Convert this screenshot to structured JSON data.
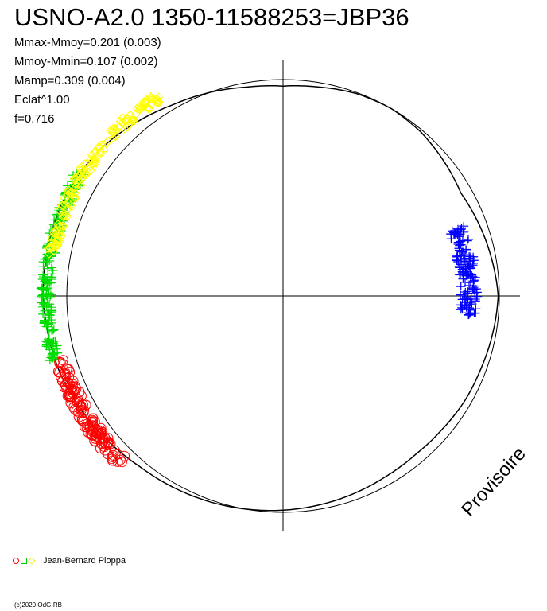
{
  "header": {
    "title": "USNO-A2.0 1350-11588253=JBP36",
    "stats": [
      "Mmax-Mmoy=0.201 (0.003)",
      "Mmoy-Mmin=0.107 (0.002)",
      "Mamp=0.309 (0.004)",
      "Eclat^1.00",
      "f=0.716"
    ]
  },
  "legend": {
    "observer": "Jean-Bernard Pioppa"
  },
  "watermark": "Provisoire",
  "footer": {
    "copyright": "(c)2020 OdG-RB"
  },
  "colors": {
    "red": "#ff0000",
    "green": "#00dd00",
    "yellow": "#ffff00",
    "blue": "#0000ff",
    "line": "#000000"
  },
  "chart_data": {
    "type": "scatter",
    "coordinate_system": "polar",
    "reference_circle_radius": 1.0,
    "model_curve": {
      "radius_at_angle_deg": [
        [
          0,
          0.995
        ],
        [
          10,
          0.98
        ],
        [
          20,
          0.965
        ],
        [
          30,
          0.95
        ],
        [
          40,
          0.97
        ],
        [
          50,
          0.99
        ],
        [
          60,
          1.0
        ],
        [
          70,
          0.995
        ],
        [
          80,
          0.98
        ],
        [
          90,
          0.97
        ],
        [
          100,
          0.98
        ],
        [
          110,
          1.0
        ],
        [
          120,
          1.02
        ],
        [
          130,
          1.05
        ],
        [
          140,
          1.08
        ],
        [
          150,
          1.1
        ],
        [
          160,
          1.11
        ],
        [
          170,
          1.11
        ],
        [
          180,
          1.11
        ],
        [
          190,
          1.1
        ],
        [
          200,
          1.09
        ],
        [
          210,
          1.07
        ],
        [
          220,
          1.05
        ],
        [
          230,
          1.03
        ],
        [
          240,
          1.02
        ],
        [
          250,
          1.01
        ],
        [
          260,
          1.0
        ],
        [
          270,
          0.99
        ],
        [
          280,
          0.98
        ],
        [
          290,
          0.97
        ],
        [
          300,
          0.96
        ],
        [
          310,
          0.955
        ],
        [
          320,
          0.96
        ],
        [
          330,
          0.97
        ],
        [
          340,
          0.975
        ],
        [
          350,
          0.985
        ]
      ]
    },
    "series": [
      {
        "color": "red",
        "marker": "circle",
        "angle_range_deg": [
          196,
          226
        ],
        "radius_range": [
          1.04,
          1.1
        ],
        "count": 130
      },
      {
        "color": "green",
        "marker": "cross",
        "angle_range_deg": [
          148,
          196
        ],
        "radius_range": [
          1.07,
          1.12
        ],
        "count": 190
      },
      {
        "color": "yellow",
        "marker": "diamond",
        "angle_range_deg": [
          122,
          170
        ],
        "radius_range": [
          1.06,
          1.11
        ],
        "count": 150
      },
      {
        "color": "blue",
        "marker": "cross",
        "angle_range_deg": [
          354,
          22
        ],
        "radius_range": [
          0.82,
          0.9
        ],
        "count": 140
      }
    ]
  }
}
